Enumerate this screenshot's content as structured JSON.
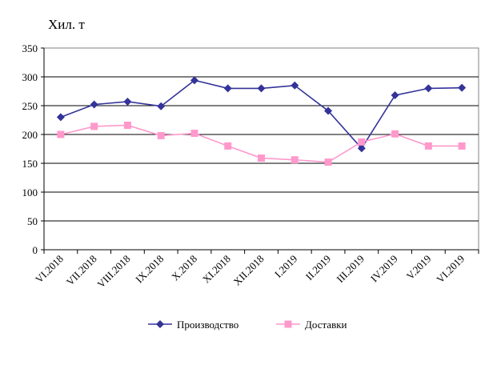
{
  "chart_data": {
    "type": "line",
    "title": "",
    "ylabel": "Хил. т",
    "xlabel": "",
    "ylim": [
      0,
      350
    ],
    "yticks": [
      0,
      50,
      100,
      150,
      200,
      250,
      300,
      350
    ],
    "grid": true,
    "legend_position": "bottom",
    "categories": [
      "VI.2018",
      "VII.2018",
      "VIII.2018",
      "IX.2018",
      "X.2018",
      "XI.2018",
      "XII.2018",
      "I.2019",
      "II.2019",
      "III.2019",
      "IV.2019",
      "V.2019",
      "VI.2019"
    ],
    "series": [
      {
        "name": "Производство",
        "color": "#333399",
        "marker": "diamond",
        "values": [
          230,
          252,
          257,
          249,
          294,
          280,
          280,
          285,
          241,
          176,
          268,
          280,
          281
        ]
      },
      {
        "name": "Доставки",
        "color": "#ff99cc",
        "marker": "square",
        "values": [
          200,
          214,
          216,
          198,
          202,
          180,
          159,
          156,
          152,
          187,
          201,
          180,
          180
        ]
      }
    ]
  }
}
